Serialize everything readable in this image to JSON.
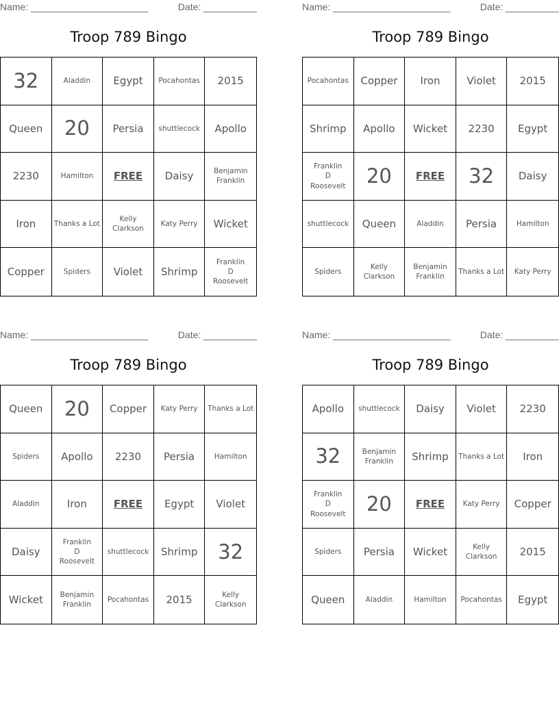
{
  "name_label": "Name: ______________________",
  "date_label": "Date: __________",
  "cards": [
    {
      "title": "Troop 789 Bingo",
      "cells": [
        "32",
        "Aladdin",
        "Egypt",
        "Pocahontas",
        "2015",
        "Queen",
        "20",
        "Persia",
        "shuttlecock",
        "Apollo",
        "2230",
        "Hamilton",
        "FREE",
        "Daisy",
        "Benjamin Franklin",
        "Iron",
        "Thanks a Lot",
        "Kelly Clarkson",
        "Katy Perry",
        "Wicket",
        "Copper",
        "Spiders",
        "Violet",
        "Shrimp",
        "Franklin D Roosevelt"
      ]
    },
    {
      "title": "Troop 789 Bingo",
      "cells": [
        "Pocahontas",
        "Copper",
        "Iron",
        "Violet",
        "2015",
        "Shrimp",
        "Apollo",
        "Wicket",
        "2230",
        "Egypt",
        "Franklin D Roosevelt",
        "20",
        "FREE",
        "32",
        "Daisy",
        "shuttlecock",
        "Queen",
        "Aladdin",
        "Persia",
        "Hamilton",
        "Spiders",
        "Kelly Clarkson",
        "Benjamin Franklin",
        "Thanks a Lot",
        "Katy Perry"
      ]
    },
    {
      "title": "Troop 789 Bingo",
      "cells": [
        "Queen",
        "20",
        "Copper",
        "Katy Perry",
        "Thanks a Lot",
        "Spiders",
        "Apollo",
        "2230",
        "Persia",
        "Hamilton",
        "Aladdin",
        "Iron",
        "FREE",
        "Egypt",
        "Violet",
        "Daisy",
        "Franklin D Roosevelt",
        "shuttlecock",
        "Shrimp",
        "32",
        "Wicket",
        "Benjamin Franklin",
        "Pocahontas",
        "2015",
        "Kelly Clarkson"
      ]
    },
    {
      "title": "Troop 789 Bingo",
      "cells": [
        "Apollo",
        "shuttlecock",
        "Daisy",
        "Violet",
        "2230",
        "32",
        "Benjamin Franklin",
        "Shrimp",
        "Thanks a Lot",
        "Iron",
        "Franklin D Roosevelt",
        "20",
        "FREE",
        "Katy Perry",
        "Copper",
        "Spiders",
        "Persia",
        "Wicket",
        "Kelly Clarkson",
        "2015",
        "Queen",
        "Aladdin",
        "Hamilton",
        "Pocahontas",
        "Egypt"
      ]
    }
  ]
}
